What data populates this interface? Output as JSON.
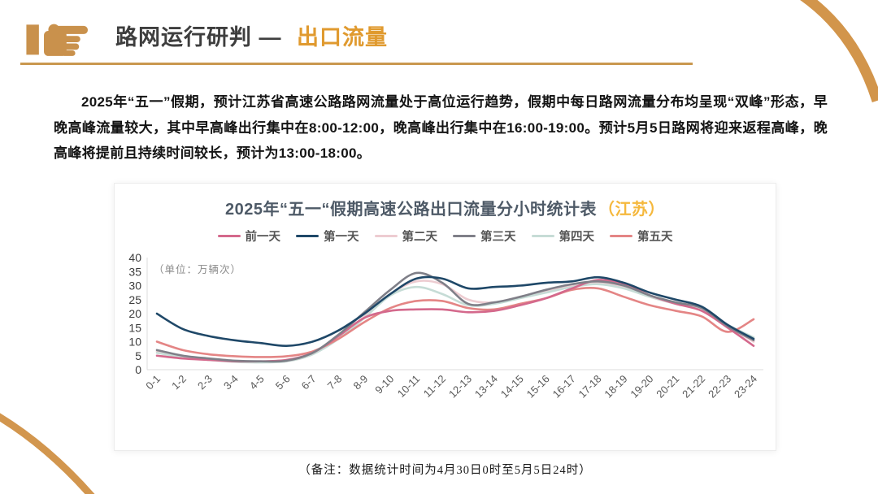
{
  "header": {
    "title_dark": "路网运行研判 —",
    "title_accent": "出口流量",
    "accent_color": "#e09a2f",
    "rule_color": "#c9984f",
    "hand_icon_color": "#c9914c"
  },
  "intro_paragraph": "2025年“五一”假期，预计江苏省高速公路路网流量处于高位运行趋势，假期中每日路网流量分布均呈现“双峰”形态，早晚高峰流量较大，其中早高峰出行集中在8:00-12:00，晚高峰出行集中在16:00-19:00。预计5月5日路网将迎来返程高峰，晚高峰将提前且持续时间较长，预计为13:00-18:00。",
  "chart_data": {
    "type": "line",
    "title": "2025年“五一“假期高速公路出口流量分小时统计表",
    "title_region": "（江苏）",
    "title_region_color": "#f5b83d",
    "unit_label": "（单位：万辆次）",
    "xlabel": "",
    "ylabel": "万辆次",
    "ylim": [
      0,
      40
    ],
    "yticks": [
      0,
      5,
      10,
      15,
      20,
      25,
      30,
      35,
      40
    ],
    "grid": false,
    "legend_position": "top",
    "categories": [
      "0-1",
      "1-2",
      "2-3",
      "3-4",
      "4-5",
      "5-6",
      "6-7",
      "7-8",
      "8-9",
      "9-10",
      "10-11",
      "11-12",
      "12-13",
      "13-14",
      "14-15",
      "15-16",
      "16-17",
      "17-18",
      "18-19",
      "19-20",
      "20-21",
      "21-22",
      "22-23",
      "23-24"
    ],
    "series": [
      {
        "name": "前一天",
        "color": "#d4698c",
        "values": [
          5,
          4,
          3.5,
          3,
          3,
          3.5,
          6,
          12,
          18.5,
          21,
          21.5,
          21.5,
          20.5,
          21,
          23,
          25.5,
          29,
          32,
          30.5,
          26.5,
          23.5,
          21,
          15,
          8.5
        ]
      },
      {
        "name": "第一天",
        "color": "#1f4868",
        "values": [
          20,
          14.5,
          12,
          10.5,
          9.5,
          8.5,
          10,
          14,
          20,
          27,
          32.5,
          32.5,
          29,
          29.5,
          30,
          31,
          31.5,
          33,
          31,
          27.5,
          25,
          22.5,
          16,
          11
        ]
      },
      {
        "name": "第二天",
        "color": "#edccd1",
        "values": [
          6.5,
          4.5,
          3.5,
          3,
          2.8,
          3,
          5.5,
          11.5,
          19,
          27,
          31.5,
          30.5,
          25,
          24,
          26,
          28,
          30,
          31,
          29.5,
          26,
          23.5,
          21.5,
          15.5,
          10
        ]
      },
      {
        "name": "第三天",
        "color": "#7f7f88",
        "values": [
          7,
          5,
          4,
          3.2,
          3,
          3.2,
          6,
          12.5,
          20.5,
          28.5,
          34.5,
          31,
          23.5,
          24,
          26,
          28.5,
          30.5,
          31.5,
          30,
          26.5,
          24,
          22,
          15.5,
          10.5
        ]
      },
      {
        "name": "第四天",
        "color": "#c6dcd6",
        "values": [
          6,
          4.5,
          3.5,
          2.8,
          2.6,
          3,
          5.5,
          11,
          18.5,
          26.5,
          29.5,
          27,
          23,
          23.5,
          25.5,
          27.5,
          29.5,
          30.5,
          29,
          26,
          23.5,
          21.5,
          16,
          11.5
        ]
      },
      {
        "name": "第五天",
        "color": "#e48585",
        "values": [
          10,
          7,
          5.5,
          4.8,
          4.5,
          4.8,
          6.5,
          11,
          17,
          22,
          24.5,
          24.5,
          22,
          21.5,
          23.5,
          25.5,
          28.5,
          29,
          26,
          23,
          21,
          19,
          13.5,
          18
        ]
      }
    ]
  },
  "note": "（备注：数据统计时间为4月30日0时至5月5日24时）"
}
